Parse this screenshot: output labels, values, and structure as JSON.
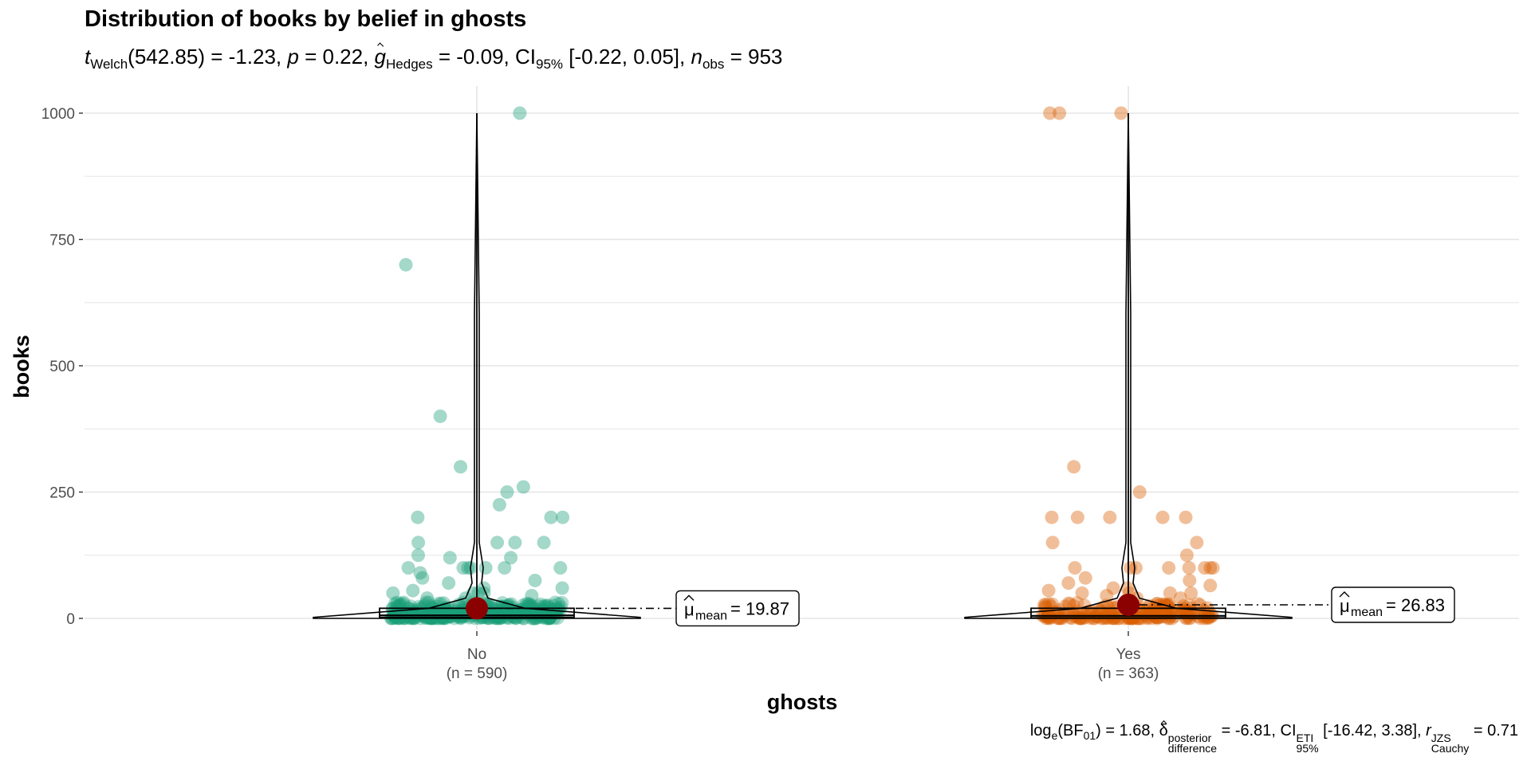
{
  "title": "Distribution of books by belief in ghosts",
  "subtitle": {
    "t_symbol": "t",
    "t_sub": "Welch",
    "t_part": "(542.85) = -1.23,",
    "p_symbol": "p",
    "p_part": "= 0.22,",
    "g_symbol": "g",
    "g_sub": "Hedges",
    "g_part": "= -0.09,",
    "ci_symbol": "CI",
    "ci_sub": "95%",
    "ci_part": "[-0.22, 0.05],",
    "n_symbol": "n",
    "n_sub": "obs",
    "n_part": "= 953"
  },
  "caption": {
    "log_base": "log",
    "log_base_sub": "e",
    "bf_open": "(BF",
    "bf_sub": "01",
    "bf_part": ") = 1.68,",
    "delta_symbol": "δ",
    "delta_sup": "posterior",
    "delta_sub": "difference",
    "delta_part": "= -6.81,",
    "ci_symbol": "CI",
    "ci_sup": "ETI",
    "ci_sub": "95%",
    "ci_part": "[-16.42, 3.38],",
    "r_symbol": "r",
    "r_sup": "JZS",
    "r_sub": "Cauchy",
    "r_part": "= 0.71"
  },
  "mean_label": {
    "mu_symbol": "μ",
    "mu_sub": "mean"
  },
  "colors": {
    "no": "#1B9E77",
    "yes": "#D95F02",
    "mean_point": "#8B0000",
    "grid": "#E5E5E5"
  },
  "chart_data": {
    "type": "scatter",
    "xlabel": "ghosts",
    "ylabel": "books",
    "ylim": [
      0,
      1000
    ],
    "y_major_ticks": [
      0,
      250,
      500,
      750,
      1000
    ],
    "grid": true,
    "categories": [
      "No",
      "Yes"
    ],
    "category_counts": [
      "(n = 590)",
      "(n = 363)"
    ],
    "series": [
      {
        "name": "No",
        "n": 590,
        "mean": 19.87,
        "mean_label": "= 19.87",
        "box": {
          "q1": 2,
          "median": 6,
          "q3": 20
        },
        "outlier_values": [
          1000,
          700,
          400,
          300,
          260,
          250,
          225,
          200,
          200,
          200,
          150,
          150,
          150,
          150,
          125,
          120,
          120,
          100,
          100,
          100,
          100,
          100,
          100,
          100,
          90,
          80,
          75,
          70,
          60,
          60,
          55,
          50,
          50,
          50,
          50,
          45,
          40,
          40
        ]
      },
      {
        "name": "Yes",
        "n": 363,
        "mean": 26.83,
        "mean_label": "= 26.83",
        "box": {
          "q1": 1,
          "median": 5,
          "q3": 20
        },
        "outlier_values": [
          1000,
          1000,
          1000,
          300,
          250,
          200,
          200,
          200,
          200,
          200,
          150,
          150,
          125,
          100,
          100,
          100,
          100,
          100,
          100,
          100,
          100,
          80,
          75,
          70,
          65,
          60,
          60,
          55,
          50,
          50,
          50,
          50,
          45,
          40,
          40
        ]
      }
    ]
  }
}
